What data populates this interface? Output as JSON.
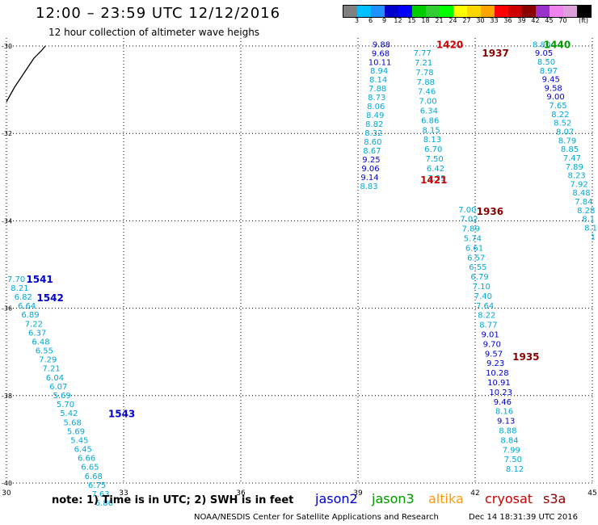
{
  "header": {
    "title": "12:00 – 23:59 UTC 12/12/2016",
    "subtitle": "12 hour collection of altimeter wave heighs"
  },
  "legend": {
    "unit": "(ft)",
    "colors": [
      "#808080",
      "#00bfff",
      "#1e90ff",
      "#0000cd",
      "#0000ff",
      "#00cd00",
      "#32cd32",
      "#00ff00",
      "#ffff00",
      "#ffd700",
      "#ffa500",
      "#ff0000",
      "#cd0000",
      "#8b0000",
      "#9932cc",
      "#ee82ee",
      "#dda0dd",
      "#000000"
    ],
    "ticks": [
      "3",
      "6",
      "9",
      "12",
      "15",
      "18",
      "21",
      "24",
      "27",
      "30",
      "33",
      "36",
      "39",
      "42",
      "45",
      "70"
    ]
  },
  "note": "note:  1) Time is in UTC;  2) SWH is in feet",
  "satellites": [
    {
      "name": "jason2",
      "color": "#0000cc"
    },
    {
      "name": "jason3",
      "color": "#009900"
    },
    {
      "name": "altika",
      "color": "#ff9900"
    },
    {
      "name": "cryosat",
      "color": "#cc0000"
    },
    {
      "name": "s3a",
      "color": "#880000"
    }
  ],
  "footer": {
    "credit": "NOAA/NESDIS Center for Satellite Applications and Research",
    "timestamp": "Dec 14 18:31:39 UTC 2016"
  },
  "map": {
    "lon_labels": [
      "30",
      "33",
      "36",
      "39",
      "42",
      "45"
    ],
    "lat_labels": [
      "-30",
      "-32",
      "-34",
      "-36",
      "-38",
      "-40"
    ],
    "pass_labels": [
      {
        "text": "1420",
        "lon": 41.35,
        "lat": -29.95,
        "color": "#cc0000"
      },
      {
        "text": "1937",
        "lon": 42.52,
        "lat": -30.15,
        "color": "#880000"
      },
      {
        "text": "1440",
        "lon": 44.1,
        "lat": -29.95,
        "color": "#009900"
      },
      {
        "text": "1421",
        "lon": 40.94,
        "lat": -33.05,
        "color": "#cc0000"
      },
      {
        "text": "1936",
        "lon": 42.38,
        "lat": -33.77,
        "color": "#880000"
      },
      {
        "text": "1541",
        "lon": 30.85,
        "lat": -35.32,
        "color": "#0000cc"
      },
      {
        "text": "1542",
        "lon": 31.12,
        "lat": -35.75,
        "color": "#0000cc"
      },
      {
        "text": "1935",
        "lon": 43.3,
        "lat": -37.1,
        "color": "#880000"
      },
      {
        "text": "1543",
        "lon": 32.95,
        "lat": -38.4,
        "color": "#0000cc"
      }
    ],
    "tracks": [
      {
        "name": "track-a",
        "startLon": 39.6,
        "startLat": -29.95,
        "step": 0.203,
        "dLon": -0.02,
        "values": [
          "9.88",
          "9.68",
          "10.11",
          "8.94",
          "8.14",
          "7.88",
          "8.73",
          "8.06",
          "8.49",
          "8.82",
          "8.32",
          "8.60",
          "8.67",
          "9.25",
          "9.06",
          "9.14",
          "8.83"
        ]
      },
      {
        "name": "track-b",
        "startLon": 40.65,
        "startLat": -30.15,
        "step": 0.22,
        "dLon": 0.028,
        "values": [
          "7.77",
          "7.21",
          "7.78",
          "7.88",
          "7.46",
          "7.00",
          "6.34",
          "6.86",
          "8.15",
          "8.13",
          "6.70",
          "7.50",
          "6.42",
          "7.39"
        ]
      },
      {
        "name": "track-c",
        "startLon": 41.8,
        "startLat": -33.73,
        "step": 0.22,
        "dLon": 0.045,
        "values": [
          "7.00",
          "7.02",
          "7.89",
          "5.74",
          "6.61",
          "6.57",
          "6.55",
          "6.79",
          "7.10",
          "7.40",
          "7.64",
          "8.22",
          "8.77",
          "9.01",
          "9.70",
          "9.57",
          "9.23",
          "10.28",
          "10.91",
          "10.23",
          "9.46",
          "8.16",
          "9.13",
          "8.88",
          "8.84",
          "7.99",
          "7.50",
          "8.12"
        ]
      },
      {
        "name": "track-d",
        "startLon": 43.7,
        "startLat": -29.95,
        "step": 0.2,
        "dLon": 0.06,
        "values": [
          "8.80",
          "9.05",
          "8.50",
          "8.97",
          "9.45",
          "9.58",
          "9.00",
          "7.65",
          "8.22",
          "8.52",
          "8.07",
          "8.79",
          "8.85",
          "7.47",
          "7.89",
          "8.23",
          "7.92",
          "8.48",
          "7.84",
          "8.28",
          "8.1",
          "8.1",
          "1"
        ]
      },
      {
        "name": "track-e",
        "startLon": 30.25,
        "startLat": -35.32,
        "step": 0.205,
        "dLon": 0.09,
        "values": [
          "7.70",
          "8.21",
          "6.82",
          "6.64",
          "6.89",
          "7.22",
          "6.37",
          "6.48",
          "6.55",
          "7.29",
          "7.21",
          "6.04",
          "6.07",
          "5.69",
          "5.70",
          "5.42",
          "5.68",
          "5.69",
          "5.45",
          "6.45",
          "6.66",
          "6.65",
          "6.68",
          "6.75",
          "7.63",
          "6.86"
        ]
      }
    ]
  }
}
